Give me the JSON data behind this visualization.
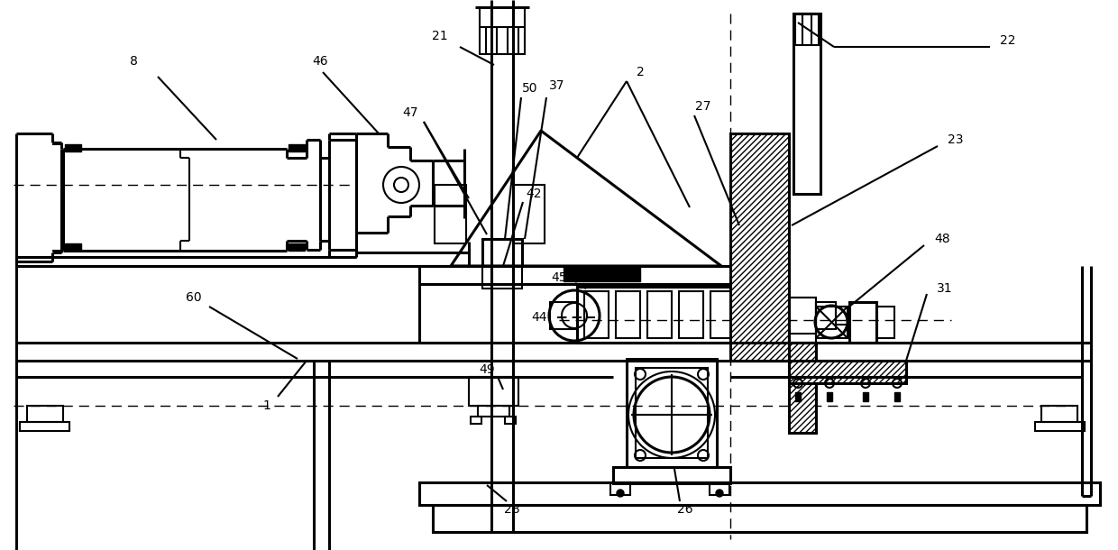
{
  "fig_width": 12.4,
  "fig_height": 6.1,
  "dpi": 100,
  "bg_color": "#ffffff",
  "lc": "#000000",
  "lw": 1.5,
  "lw2": 2.2,
  "lw3": 3.0
}
